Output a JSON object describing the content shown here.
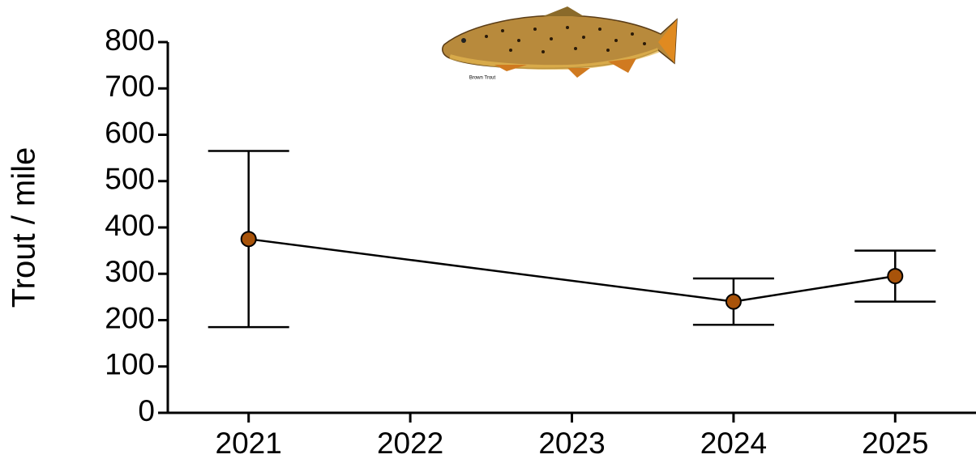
{
  "chart_data": {
    "type": "line",
    "y_label": "Trout / mile",
    "image_caption": "Brown Trout",
    "x": [
      2021,
      2024,
      2025
    ],
    "values": [
      375,
      240,
      295
    ],
    "errors": [
      190,
      50,
      55
    ],
    "color": "#a8530a",
    "line_color": "#000000",
    "xlim": [
      2020.5,
      2025.5
    ],
    "xticks": [
      2021,
      2022,
      2023,
      2024,
      2025
    ],
    "ylim": [
      0,
      800
    ],
    "yticks": [
      0,
      100,
      200,
      300,
      400,
      500,
      600,
      700,
      800
    ]
  }
}
